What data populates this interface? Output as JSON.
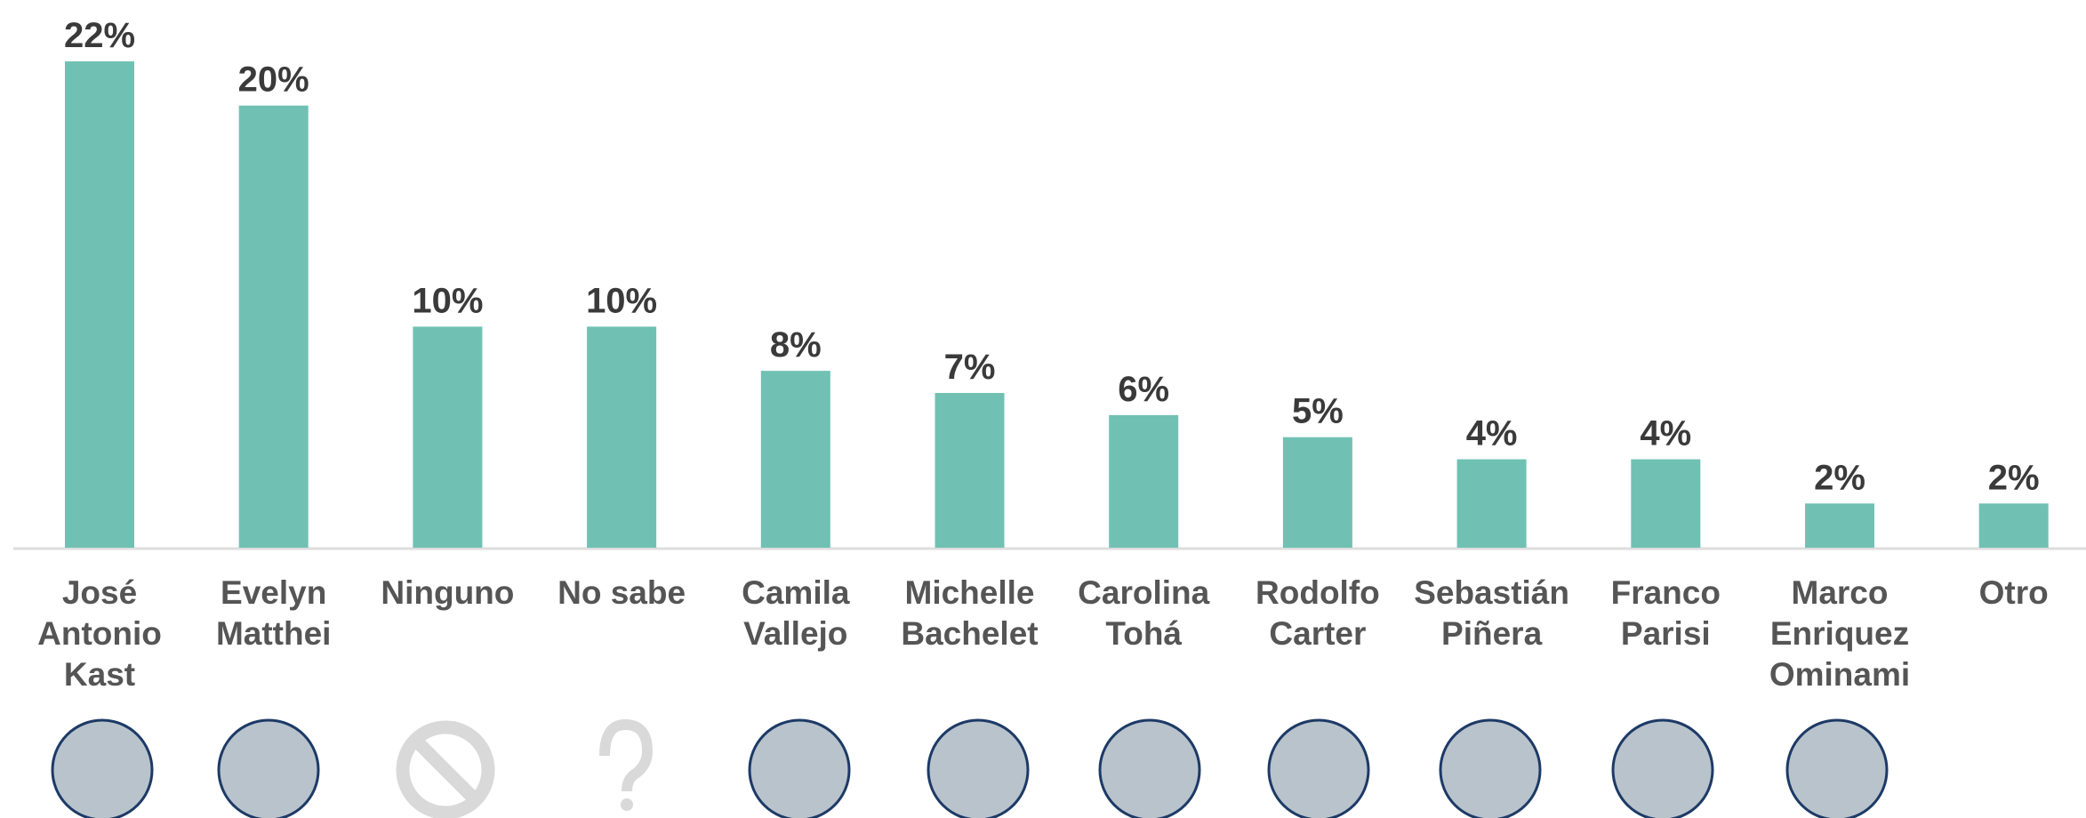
{
  "chart_data": {
    "type": "bar",
    "categories": [
      "José Antonio Kast",
      "Evelyn Matthei",
      "Ninguno",
      "No sabe",
      "Camila Vallejo",
      "Michelle Bachelet",
      "Carolina Tohá",
      "Rodolfo Carter",
      "Sebastián Piñera",
      "Franco Parisi",
      "Marco Enriquez Ominami",
      "Otro"
    ],
    "values": [
      22,
      20,
      10,
      10,
      8,
      7,
      6,
      5,
      4,
      4,
      2,
      2
    ],
    "value_labels": [
      "22%",
      "20%",
      "10%",
      "10%",
      "8%",
      "7%",
      "6%",
      "5%",
      "4%",
      "4%",
      "2%",
      "2%"
    ],
    "color": "#70c1b3",
    "ylim": [
      0,
      22
    ]
  }
}
